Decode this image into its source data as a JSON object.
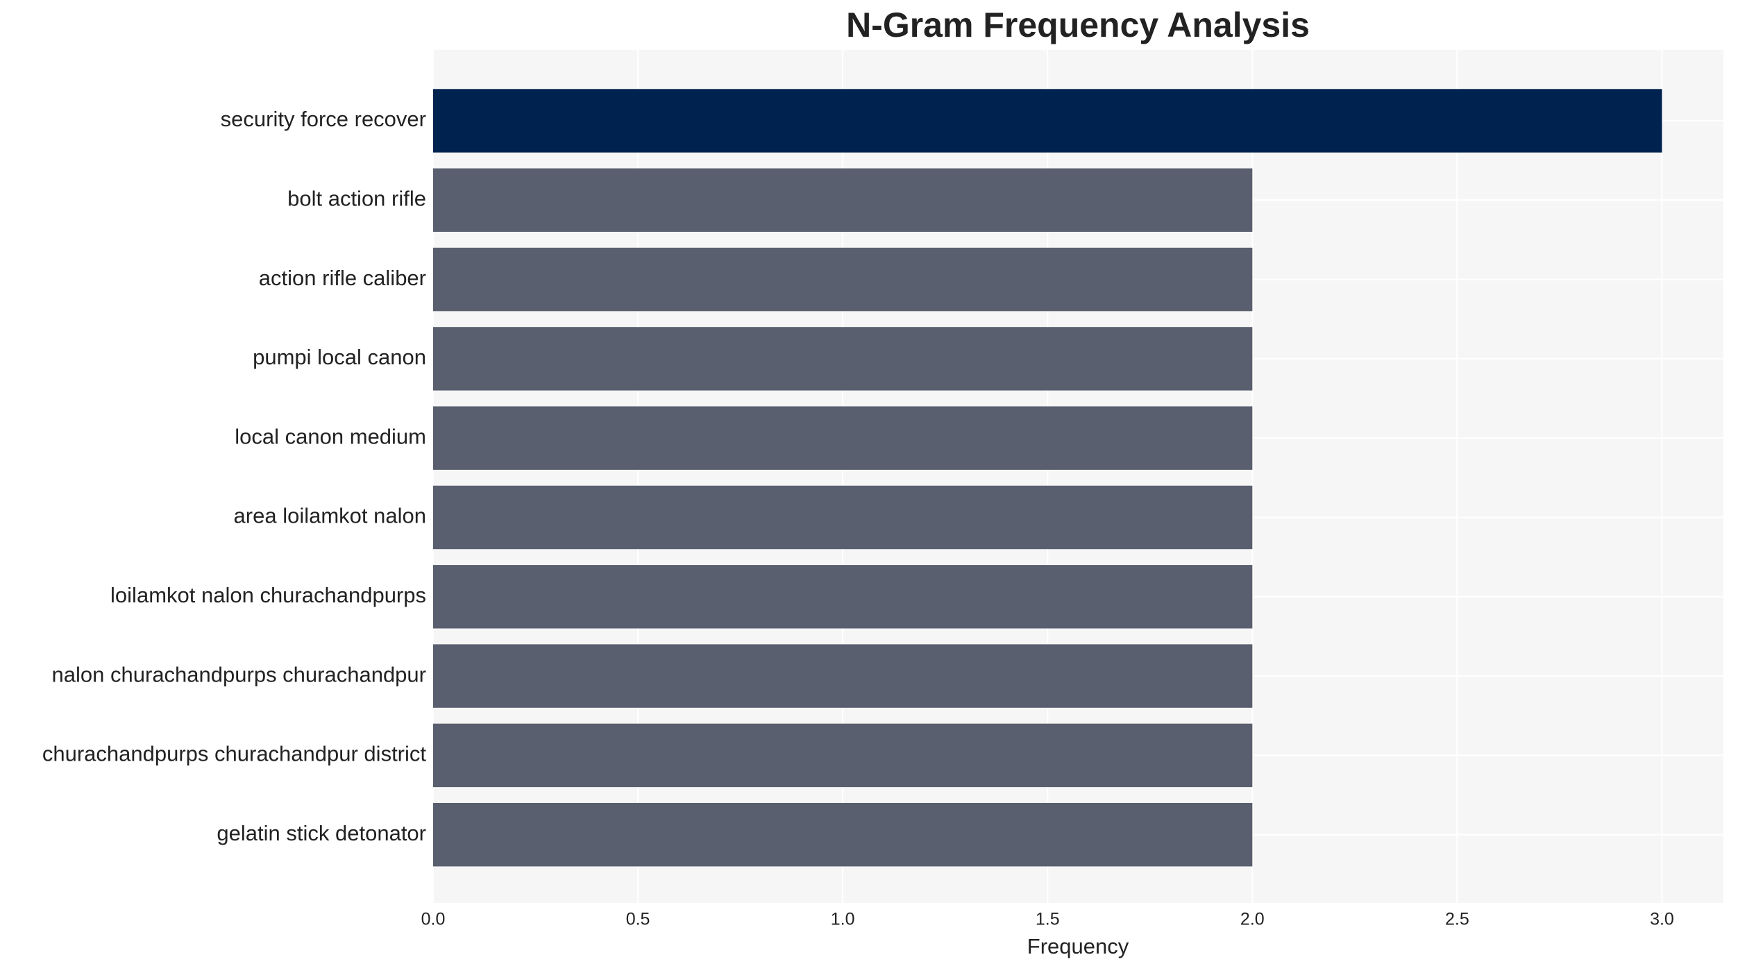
{
  "chart_data": {
    "type": "bar",
    "orientation": "horizontal",
    "title": "N-Gram Frequency Analysis",
    "x_label": "Frequency",
    "categories": [
      "security force recover",
      "bolt action rifle",
      "action rifle caliber",
      "pumpi local canon",
      "local canon medium",
      "area loilamkot nalon",
      "loilamkot nalon churachandpurps",
      "nalon churachandpurps churachandpur",
      "churachandpurps churachandpur district",
      "gelatin stick detonator"
    ],
    "values": [
      3,
      2,
      2,
      2,
      2,
      2,
      2,
      2,
      2,
      2
    ],
    "colors": [
      "#00224e",
      "#5a5f6f",
      "#5a5f6f",
      "#5a5f6f",
      "#5a5f6f",
      "#5a5f6f",
      "#5a5f6f",
      "#5a5f6f",
      "#5a5f6f",
      "#5a5f6f"
    ],
    "xlim": [
      0,
      3.15
    ],
    "xticks": [
      {
        "value": 0,
        "label": "0.0"
      },
      0.5,
      {
        "value": 1,
        "label": "1.0"
      },
      1.5,
      {
        "value": 2,
        "label": "2.0"
      },
      2.5,
      {
        "value": 3,
        "label": "3.0"
      }
    ],
    "grid": true
  }
}
